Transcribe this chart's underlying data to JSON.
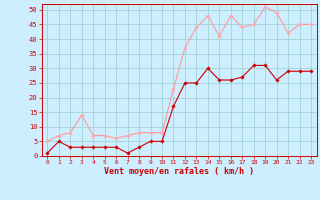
{
  "x": [
    0,
    1,
    2,
    3,
    4,
    5,
    6,
    7,
    8,
    9,
    10,
    11,
    12,
    13,
    14,
    15,
    16,
    17,
    18,
    19,
    20,
    21,
    22,
    23
  ],
  "y_mean": [
    1,
    5,
    3,
    3,
    3,
    3,
    3,
    1,
    3,
    5,
    5,
    17,
    25,
    25,
    30,
    26,
    26,
    27,
    31,
    31,
    26,
    29,
    29,
    29
  ],
  "y_gust": [
    5,
    7,
    8,
    14,
    7,
    7,
    6,
    7,
    8,
    8,
    8,
    23,
    37,
    44,
    48,
    41,
    48,
    44,
    45,
    51,
    49,
    42,
    45,
    45
  ],
  "bg_color": "#cceeff",
  "grid_color": "#99cccc",
  "line_color_mean": "#cc0000",
  "line_color_gust": "#ff9999",
  "marker_color_mean": "#cc0000",
  "marker_color_gust": "#ffaaaa",
  "xlabel": "Vent moyen/en rafales ( km/h )",
  "ylim": [
    0,
    52
  ],
  "yticks": [
    0,
    5,
    10,
    15,
    20,
    25,
    30,
    35,
    40,
    45,
    50
  ],
  "xticks": [
    0,
    1,
    2,
    3,
    4,
    5,
    6,
    7,
    8,
    9,
    10,
    11,
    12,
    13,
    14,
    15,
    16,
    17,
    18,
    19,
    20,
    21,
    22,
    23
  ],
  "xlabel_color": "#cc0000",
  "tick_color": "#cc0000",
  "axis_color": "#cc0000"
}
